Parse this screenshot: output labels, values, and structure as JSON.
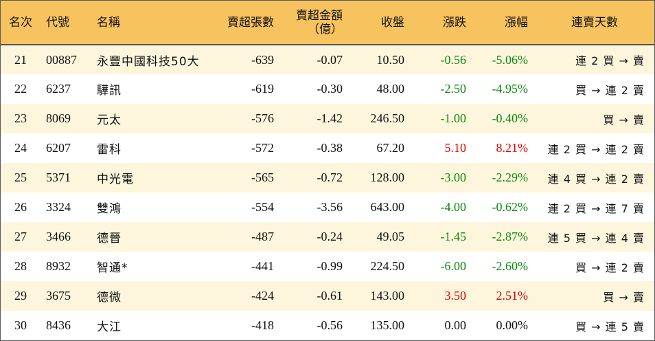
{
  "headers": {
    "rank": "名次",
    "code": "代號",
    "name": "名稱",
    "net_sell_lots": "賣超張數",
    "net_sell_amount_line1": "賣超金額",
    "net_sell_amount_line2": "（億）",
    "close": "收盤",
    "change": "漲跌",
    "change_pct": "漲幅",
    "streak": "連賣天數"
  },
  "colors": {
    "header_bg": "#f7c35f",
    "odd_row_bg": "#fdf6dd",
    "up": "#e00000",
    "down": "#0b8a0b"
  },
  "rows": [
    {
      "rank": "21",
      "code": "00887",
      "name": "永豐中國科技50大",
      "lots": "-639",
      "amount": "-0.07",
      "close": "10.50",
      "change": "-0.56",
      "pct": "-5.06%",
      "streak": "連 2 買 → 賣",
      "dir": "down"
    },
    {
      "rank": "22",
      "code": "6237",
      "name": "驊訊",
      "lots": "-619",
      "amount": "-0.30",
      "close": "48.00",
      "change": "-2.50",
      "pct": "-4.95%",
      "streak": "買 → 連 2 賣",
      "dir": "down"
    },
    {
      "rank": "23",
      "code": "8069",
      "name": "元太",
      "lots": "-576",
      "amount": "-1.42",
      "close": "246.50",
      "change": "-1.00",
      "pct": "-0.40%",
      "streak": "買 → 賣",
      "dir": "down"
    },
    {
      "rank": "24",
      "code": "6207",
      "name": "雷科",
      "lots": "-572",
      "amount": "-0.38",
      "close": "67.20",
      "change": "5.10",
      "pct": "8.21%",
      "streak": "連 2 買 → 連 2 賣",
      "dir": "up"
    },
    {
      "rank": "25",
      "code": "5371",
      "name": "中光電",
      "lots": "-565",
      "amount": "-0.72",
      "close": "128.00",
      "change": "-3.00",
      "pct": "-2.29%",
      "streak": "連 4 買 → 連 2 賣",
      "dir": "down"
    },
    {
      "rank": "26",
      "code": "3324",
      "name": "雙鴻",
      "lots": "-554",
      "amount": "-3.56",
      "close": "643.00",
      "change": "-4.00",
      "pct": "-0.62%",
      "streak": "連 2 買 → 連 7 賣",
      "dir": "down"
    },
    {
      "rank": "27",
      "code": "3466",
      "name": "德晉",
      "lots": "-487",
      "amount": "-0.24",
      "close": "49.05",
      "change": "-1.45",
      "pct": "-2.87%",
      "streak": "連 5 買 → 連 4 賣",
      "dir": "down"
    },
    {
      "rank": "28",
      "code": "8932",
      "name": "智通*",
      "lots": "-441",
      "amount": "-0.99",
      "close": "224.50",
      "change": "-6.00",
      "pct": "-2.60%",
      "streak": "買 → 連 2 賣",
      "dir": "down"
    },
    {
      "rank": "29",
      "code": "3675",
      "name": "德微",
      "lots": "-424",
      "amount": "-0.61",
      "close": "143.00",
      "change": "3.50",
      "pct": "2.51%",
      "streak": "買 → 賣",
      "dir": "up"
    },
    {
      "rank": "30",
      "code": "8436",
      "name": "大江",
      "lots": "-418",
      "amount": "-0.56",
      "close": "135.00",
      "change": "0.00",
      "pct": "0.00%",
      "streak": "買 → 連 5 賣",
      "dir": "flat"
    }
  ]
}
